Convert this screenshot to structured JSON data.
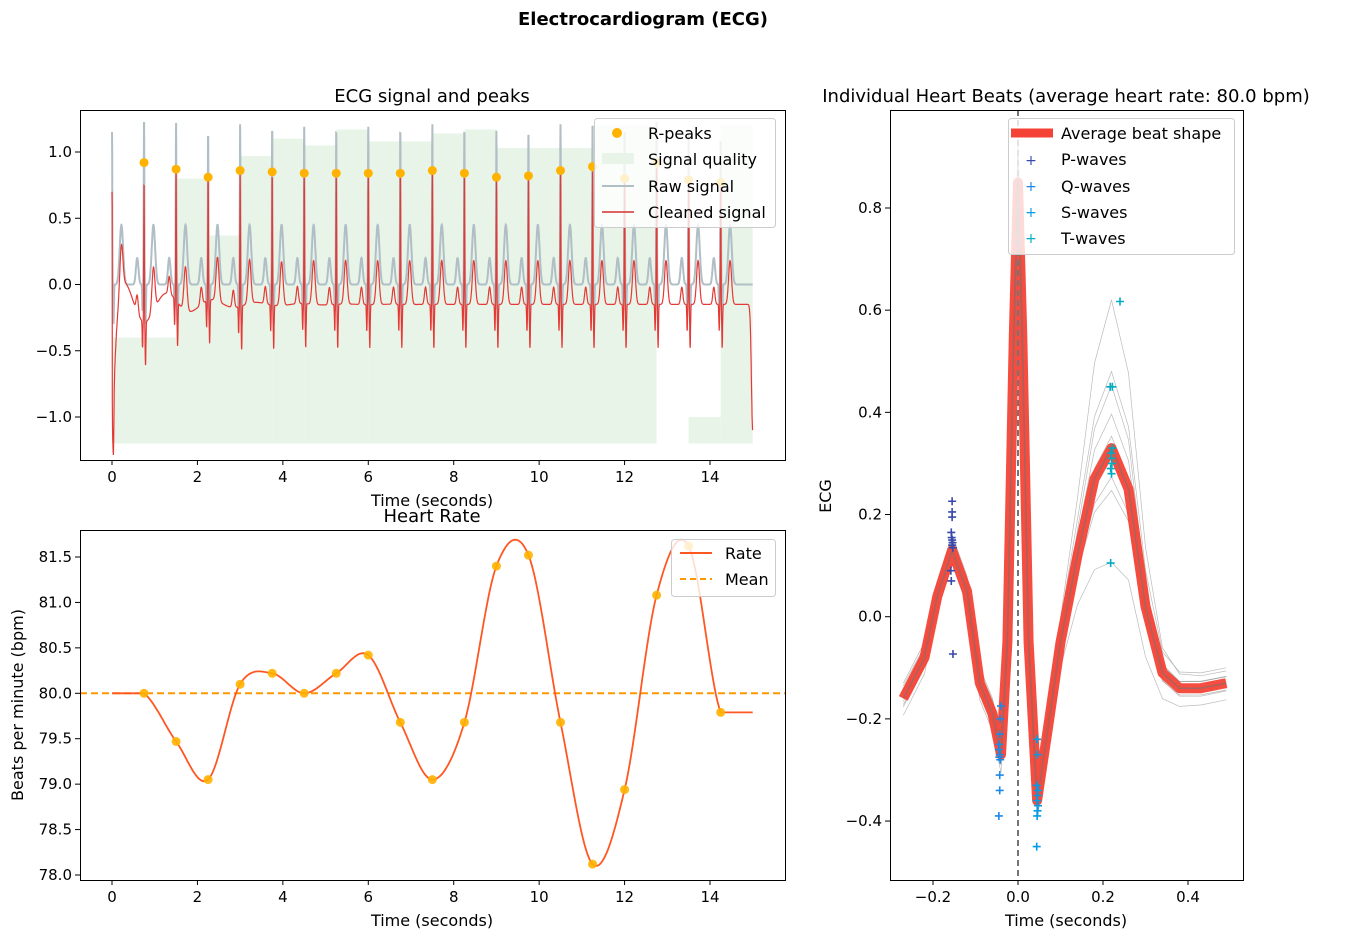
{
  "figure_title": "Electrocardiogram (ECG)",
  "chart_data": [
    {
      "type": "line",
      "title": "ECG signal and peaks",
      "xlabel": "Time (seconds)",
      "ylabel": "",
      "xlim": [
        -0.75,
        15.75
      ],
      "ylim": [
        -1.32,
        1.32
      ],
      "xticks": [
        0,
        2,
        4,
        6,
        8,
        10,
        12,
        14
      ],
      "xtick_labels": [
        "0",
        "2",
        "4",
        "6",
        "8",
        "10",
        "12",
        "14"
      ],
      "yticks": [
        -1.0,
        -0.5,
        0.0,
        0.5,
        1.0
      ],
      "ytick_labels": [
        "−1.0",
        "−0.5",
        "0.0",
        "0.5",
        "1.0"
      ],
      "legend_position": "top-right",
      "legend": [
        "R-peaks",
        "Signal quality",
        "Raw signal",
        "Cleaned signal"
      ],
      "colors": {
        "r_peaks": "#FFB300",
        "quality": "#E8F4E8",
        "raw": "#B0BEC5",
        "cleaned": "#E53935"
      },
      "r_peaks": {
        "t": [
          0.75,
          1.5,
          2.25,
          3.0,
          3.75,
          4.5,
          5.25,
          6.0,
          6.75,
          7.5,
          8.25,
          9.0,
          9.75,
          10.5,
          11.25,
          12.0,
          12.75,
          13.5,
          14.25
        ],
        "ecg": [
          0.92,
          0.87,
          0.81,
          0.86,
          0.85,
          0.84,
          0.84,
          0.84,
          0.84,
          0.86,
          0.84,
          0.81,
          0.82,
          0.86,
          0.89,
          0.8,
          0.92,
          0.79,
          0.77
        ]
      },
      "signal_quality_steps": {
        "baseline": -1.2,
        "t_start": [
          0.0,
          1.5,
          2.25,
          3.0,
          3.75,
          4.5,
          5.25,
          6.0,
          7.5,
          8.25,
          9.0,
          10.5,
          11.25,
          13.5,
          14.25
        ],
        "t_end": [
          1.5,
          2.25,
          3.0,
          3.75,
          4.5,
          5.25,
          6.0,
          7.5,
          8.25,
          9.0,
          10.5,
          11.25,
          12.75,
          14.25,
          15.0
        ],
        "level": [
          -0.4,
          0.8,
          0.37,
          0.97,
          1.1,
          1.05,
          1.17,
          1.08,
          1.14,
          1.17,
          1.03,
          1.03,
          1.2,
          -1.0,
          1.2
        ]
      }
    },
    {
      "type": "line",
      "title": "Heart Rate",
      "xlabel": "Time (seconds)",
      "ylabel": "Beats per minute (bpm)",
      "xlim": [
        -0.75,
        15.75
      ],
      "ylim": [
        77.95,
        81.8
      ],
      "xticks": [
        0,
        2,
        4,
        6,
        8,
        10,
        12,
        14
      ],
      "xtick_labels": [
        "0",
        "2",
        "4",
        "6",
        "8",
        "10",
        "12",
        "14"
      ],
      "yticks": [
        78.0,
        78.5,
        79.0,
        79.5,
        80.0,
        80.5,
        81.0,
        81.5
      ],
      "ytick_labels": [
        "78.0",
        "78.5",
        "79.0",
        "79.5",
        "80.0",
        "80.5",
        "81.0",
        "81.5"
      ],
      "legend_position": "top-right",
      "legend": [
        "Rate",
        "Mean"
      ],
      "colors": {
        "rate": "#FF5722",
        "mean": "#FF9800",
        "points": "#FFB300"
      },
      "mean": 80.0,
      "x": [
        0.75,
        1.5,
        2.25,
        3.0,
        3.75,
        4.5,
        5.25,
        6.0,
        6.75,
        7.5,
        8.25,
        9.0,
        9.75,
        10.5,
        11.25,
        12.0,
        12.75,
        13.5,
        14.25
      ],
      "rate": [
        80.0,
        79.47,
        79.05,
        80.1,
        80.22,
        80.0,
        80.22,
        80.42,
        79.68,
        79.05,
        79.68,
        81.4,
        81.52,
        79.68,
        78.12,
        78.94,
        81.08,
        81.62,
        79.79
      ],
      "x_range": [
        0,
        15
      ]
    },
    {
      "type": "line",
      "title": "Individual Heart Beats (average heart rate: 80.0 bpm)",
      "xlabel": "Time (seconds)",
      "ylabel": "ECG",
      "xlim": [
        -0.3,
        0.53
      ],
      "ylim": [
        -0.515,
        0.99
      ],
      "xticks": [
        -0.2,
        0.0,
        0.2,
        0.4
      ],
      "xtick_labels": [
        "−0.2",
        "0.0",
        "0.2",
        "0.4"
      ],
      "yticks": [
        -0.4,
        -0.2,
        0.0,
        0.2,
        0.4,
        0.6,
        0.8
      ],
      "ytick_labels": [
        "−0.4",
        "−0.2",
        "0.0",
        "0.2",
        "0.4",
        "0.6",
        "0.8"
      ],
      "legend_position": "top-right",
      "legend": [
        "Average beat shape",
        "P-waves",
        "Q-waves",
        "S-waves",
        "T-waves"
      ],
      "colors": {
        "average": "#F44336",
        "beats": "#9E9E9E",
        "p": "#3949AB",
        "q": "#1E88E5",
        "s": "#039BE5",
        "t": "#00ACC1",
        "zero_line": "#757575"
      },
      "average_beat": {
        "x": [
          -0.27,
          -0.22,
          -0.19,
          -0.155,
          -0.12,
          -0.09,
          -0.06,
          -0.04,
          -0.025,
          -0.01,
          0.0,
          0.01,
          0.025,
          0.045,
          0.07,
          0.1,
          0.14,
          0.18,
          0.22,
          0.26,
          0.3,
          0.34,
          0.38,
          0.43,
          0.49
        ],
        "y": [
          -0.16,
          -0.08,
          0.04,
          0.13,
          0.05,
          -0.13,
          -0.19,
          -0.27,
          -0.05,
          0.55,
          0.85,
          0.55,
          -0.05,
          -0.36,
          -0.22,
          -0.05,
          0.12,
          0.27,
          0.33,
          0.25,
          0.02,
          -0.11,
          -0.14,
          -0.14,
          -0.13
        ]
      },
      "p_waves": {
        "x": [
          -0.155,
          -0.155,
          -0.155,
          -0.157,
          -0.156,
          -0.155,
          -0.154,
          -0.155,
          -0.153,
          -0.158,
          -0.157,
          -0.153
        ],
        "y": [
          0.226,
          0.205,
          0.195,
          0.165,
          0.155,
          0.15,
          0.145,
          0.14,
          0.135,
          0.09,
          0.07,
          -0.073
        ]
      },
      "q_waves": {
        "x": [
          -0.04,
          -0.042,
          -0.043,
          -0.044,
          -0.045,
          -0.043,
          -0.044,
          -0.042,
          -0.043,
          -0.043,
          -0.045
        ],
        "y": [
          -0.175,
          -0.2,
          -0.23,
          -0.25,
          -0.26,
          -0.27,
          -0.275,
          -0.28,
          -0.31,
          -0.34,
          -0.39
        ]
      },
      "s_waves": {
        "x": [
          0.045,
          0.046,
          0.044,
          0.047,
          0.046,
          0.045,
          0.047,
          0.046,
          0.045,
          0.044
        ],
        "y": [
          -0.24,
          -0.27,
          -0.33,
          -0.34,
          -0.35,
          -0.36,
          -0.37,
          -0.38,
          -0.39,
          -0.45
        ]
      },
      "t_waves": {
        "x": [
          0.24,
          0.217,
          0.222,
          0.222,
          0.219,
          0.22,
          0.221,
          0.218,
          0.22,
          0.218
        ],
        "y": [
          0.617,
          0.45,
          0.45,
          0.33,
          0.32,
          0.31,
          0.3,
          0.29,
          0.28,
          0.105
        ]
      }
    }
  ]
}
